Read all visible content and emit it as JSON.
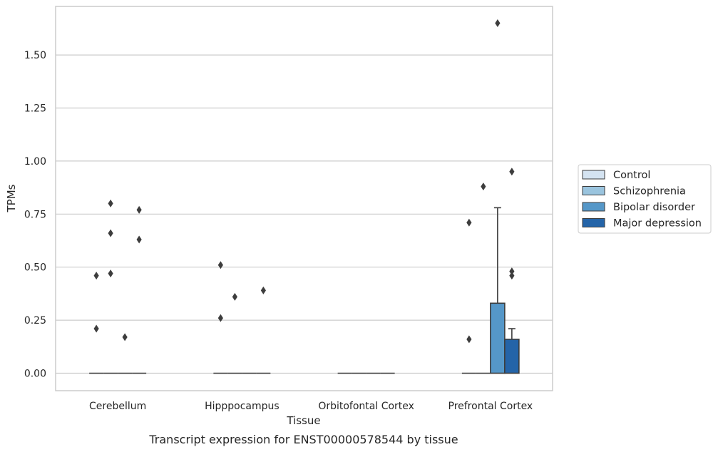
{
  "chart_data": {
    "type": "bar",
    "title": "",
    "caption": "Transcript expression for ENST00000578544 by tissue",
    "xlabel": "Tissue",
    "ylabel": "TPMs",
    "ylim": [
      -0.08,
      1.74
    ],
    "yticks": [
      "0.00",
      "0.25",
      "0.50",
      "0.75",
      "1.00",
      "1.25",
      "1.50"
    ],
    "grid": "horizontal",
    "legend_position": "right",
    "categories": [
      "Cerebellum",
      "Hipppocampus",
      "Orbitofontal Cortex",
      "Prefrontal Cortex"
    ],
    "series": [
      {
        "name": "Control",
        "color": "#d4e3f1",
        "values": [
          0,
          0,
          0,
          0
        ],
        "error_upper": [
          null,
          null,
          null,
          null
        ]
      },
      {
        "name": "Schizophrenia",
        "color": "#9ac4de",
        "values": [
          0,
          0,
          0,
          0
        ],
        "error_upper": [
          null,
          null,
          null,
          null
        ]
      },
      {
        "name": "Bipolar disorder",
        "color": "#5597c8",
        "values": [
          0,
          0,
          0,
          0.33
        ],
        "error_upper": [
          null,
          null,
          null,
          0.78
        ]
      },
      {
        "name": "Major depression",
        "color": "#2464a8",
        "values": [
          0,
          0,
          0,
          0.16
        ],
        "error_upper": [
          null,
          null,
          null,
          0.21
        ]
      }
    ],
    "outliers": [
      {
        "category": 0,
        "series": 0,
        "values": [
          0.21,
          0.46
        ]
      },
      {
        "category": 0,
        "series": 1,
        "values": [
          0.47,
          0.66,
          0.8
        ]
      },
      {
        "category": 0,
        "series": 2,
        "values": [
          0.17
        ]
      },
      {
        "category": 0,
        "series": 3,
        "values": [
          0.63,
          0.77
        ]
      },
      {
        "category": 1,
        "series": 0,
        "values": [
          0.26,
          0.51
        ]
      },
      {
        "category": 1,
        "series": 1,
        "values": [
          0.36
        ]
      },
      {
        "category": 1,
        "series": 3,
        "values": [
          0.39
        ]
      },
      {
        "category": 3,
        "series": 0,
        "values": [
          0.16,
          0.71
        ]
      },
      {
        "category": 3,
        "series": 1,
        "values": [
          0.88
        ]
      },
      {
        "category": 3,
        "series": 2,
        "values": [
          1.65
        ]
      },
      {
        "category": 3,
        "series": 3,
        "values": [
          0.46,
          0.48,
          0.95
        ]
      }
    ]
  }
}
